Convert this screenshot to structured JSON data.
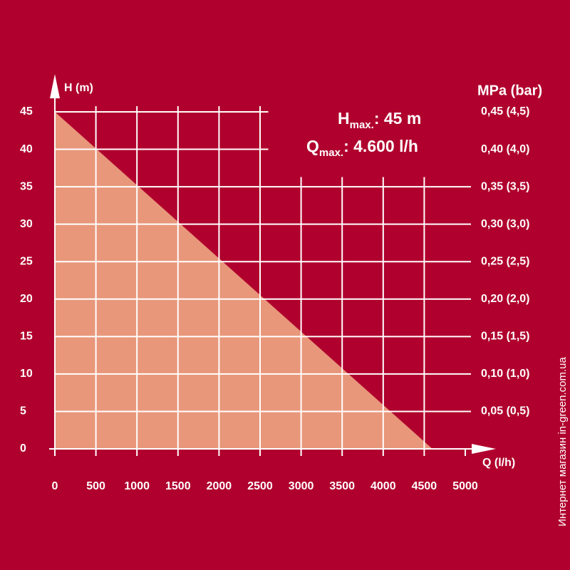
{
  "chart_data": {
    "type": "area",
    "annotations": {
      "h_symbol": "H",
      "h_sub": "max.",
      "h_rest": ": 45 m",
      "q_symbol": "Q",
      "q_sub": "max.",
      "q_rest": ": 4.600 l/h"
    },
    "y_label": "H (m)",
    "x_label": "Q (l/h)",
    "y2_label": "MPa (bar)",
    "watermark": "Интернет магазин  in-green.com.ua",
    "x": [
      0,
      4600
    ],
    "series": [
      {
        "name": "H",
        "color": "#e8977b",
        "values": [
          45,
          0
        ]
      }
    ],
    "xlim": [
      0,
      5000
    ],
    "xticks": [
      0,
      500,
      1000,
      1500,
      2000,
      2500,
      3000,
      3500,
      4000,
      4500,
      5000
    ],
    "ylim": [
      0,
      45
    ],
    "yticks": [
      0,
      5,
      10,
      15,
      20,
      25,
      30,
      35,
      40,
      45
    ],
    "y2lim": [
      0,
      0.45
    ],
    "y2ticks": [
      {
        "value": 0.05,
        "label": "0,05 (0,5)"
      },
      {
        "value": 0.1,
        "label": "0,10 (1,0)"
      },
      {
        "value": 0.15,
        "label": "0,15 (1,5)"
      },
      {
        "value": 0.2,
        "label": "0,20 (2,0)"
      },
      {
        "value": 0.25,
        "label": "0,25 (2,5)"
      },
      {
        "value": 0.3,
        "label": "0,30 (3,0)"
      },
      {
        "value": 0.35,
        "label": "0,35 (3,5)"
      },
      {
        "value": 0.4,
        "label": "0,40 (4,0)"
      },
      {
        "value": 0.45,
        "label": "0,45 (4,5)"
      }
    ],
    "grid": true,
    "background": "#b0002d"
  }
}
